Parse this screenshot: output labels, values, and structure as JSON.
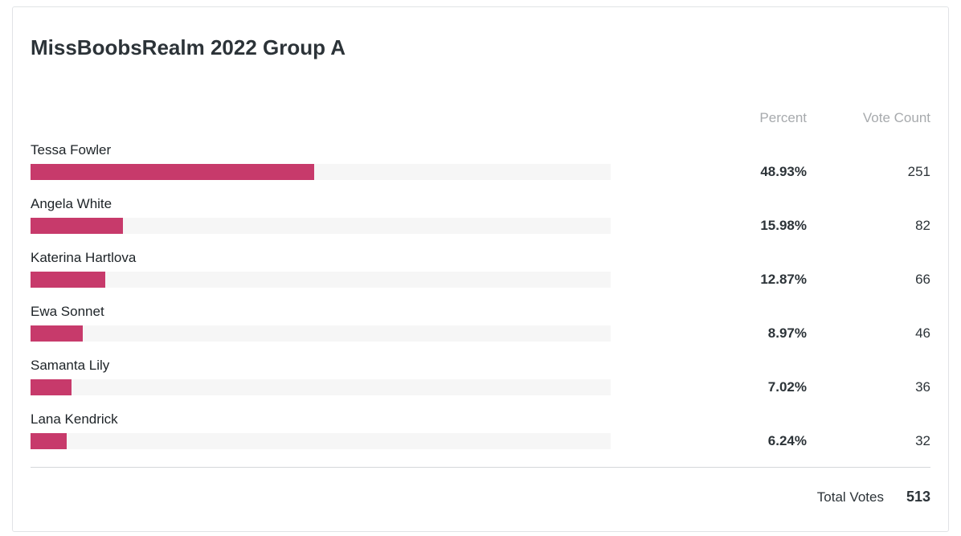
{
  "poll": {
    "title": "MissBoobsRealm 2022 Group A",
    "columns": {
      "percent": "Percent",
      "votes": "Vote Count"
    },
    "rows": [
      {
        "name": "Tessa Fowler",
        "percent": "48.93%",
        "percent_value": 48.93,
        "votes": "251"
      },
      {
        "name": "Angela White",
        "percent": "15.98%",
        "percent_value": 15.98,
        "votes": "82"
      },
      {
        "name": "Katerina Hartlova",
        "percent": "12.87%",
        "percent_value": 12.87,
        "votes": "66"
      },
      {
        "name": "Ewa Sonnet",
        "percent": "8.97%",
        "percent_value": 8.97,
        "votes": "46"
      },
      {
        "name": "Samanta Lily",
        "percent": "7.02%",
        "percent_value": 7.02,
        "votes": "36"
      },
      {
        "name": "Lana Kendrick",
        "percent": "6.24%",
        "percent_value": 6.24,
        "votes": "32"
      }
    ],
    "footer": {
      "total_label": "Total Votes",
      "total_value": "513"
    },
    "colors": {
      "bar_fill": "#c73a6b",
      "bar_track": "#f6f6f6",
      "title_text": "#2c3338",
      "header_text": "#a7aaad",
      "card_border": "#e1e3e6"
    }
  },
  "chart_data": {
    "type": "bar",
    "orientation": "horizontal",
    "title": "MissBoobsRealm 2022 Group A",
    "categories": [
      "Tessa Fowler",
      "Angela White",
      "Katerina Hartlova",
      "Ewa Sonnet",
      "Samanta Lily",
      "Lana Kendrick"
    ],
    "series": [
      {
        "name": "Percent",
        "unit": "%",
        "values": [
          48.93,
          15.98,
          12.87,
          8.97,
          7.02,
          6.24
        ]
      },
      {
        "name": "Vote Count",
        "values": [
          251,
          82,
          66,
          46,
          36,
          32
        ]
      }
    ],
    "total_votes": 513,
    "xlim": [
      0,
      100
    ],
    "grid": false,
    "legend": "none",
    "bar_color": "#c73a6b"
  }
}
